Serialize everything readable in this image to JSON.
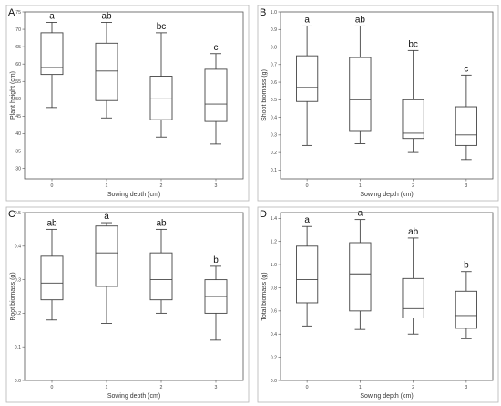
{
  "chart_data": [
    {
      "type": "box",
      "panel_label": "A",
      "xlabel": "Sowing depth (cm)",
      "ylabel": "Plant height (cm)",
      "categories": [
        "0",
        "1",
        "2",
        "3"
      ],
      "ylim": [
        27,
        75
      ],
      "yticks": [
        30,
        35,
        40,
        45,
        50,
        55,
        60,
        65,
        70,
        75
      ],
      "ytick_labels": [
        "30",
        "35",
        "40",
        "45",
        "50",
        "55",
        "60",
        "65",
        "70",
        "75"
      ],
      "boxes": [
        {
          "category": "0",
          "min": 47.5,
          "q1": 57,
          "median": 59,
          "q3": 69,
          "max": 72,
          "letter": "a"
        },
        {
          "category": "1",
          "min": 44.5,
          "q1": 49.5,
          "median": 58,
          "q3": 66,
          "max": 72,
          "letter": "ab"
        },
        {
          "category": "2",
          "min": 39,
          "q1": 44,
          "median": 50,
          "q3": 56.5,
          "max": 69,
          "letter": "bc"
        },
        {
          "category": "3",
          "min": 37,
          "q1": 43.5,
          "median": 48.5,
          "q3": 58.5,
          "max": 63,
          "letter": "c"
        }
      ]
    },
    {
      "type": "box",
      "panel_label": "B",
      "xlabel": "Sowing depth (cm)",
      "ylabel": "Shoot biomass (g)",
      "categories": [
        "0",
        "1",
        "2",
        "3"
      ],
      "ylim": [
        0.05,
        1.0
      ],
      "yticks": [
        0.1,
        0.2,
        0.3,
        0.4,
        0.5,
        0.6,
        0.7,
        0.8,
        0.9,
        1.0
      ],
      "ytick_labels": [
        "0.1",
        "0.2",
        "0.3",
        "0.4",
        "0.5",
        "0.6",
        "0.7",
        "0.8",
        "0.9",
        "1.0"
      ],
      "boxes": [
        {
          "category": "0",
          "min": 0.24,
          "q1": 0.49,
          "median": 0.57,
          "q3": 0.75,
          "max": 0.92,
          "letter": "a"
        },
        {
          "category": "1",
          "min": 0.25,
          "q1": 0.32,
          "median": 0.5,
          "q3": 0.74,
          "max": 0.92,
          "letter": "ab"
        },
        {
          "category": "2",
          "min": 0.2,
          "q1": 0.28,
          "median": 0.31,
          "q3": 0.5,
          "max": 0.78,
          "letter": "bc"
        },
        {
          "category": "3",
          "min": 0.16,
          "q1": 0.24,
          "median": 0.3,
          "q3": 0.46,
          "max": 0.64,
          "letter": "c"
        }
      ]
    },
    {
      "type": "box",
      "panel_label": "C",
      "xlabel": "Sowing depth (cm)",
      "ylabel": "Root biomass (g)",
      "categories": [
        "0",
        "1",
        "2",
        "3"
      ],
      "ylim": [
        0.0,
        0.5
      ],
      "yticks": [
        0.0,
        0.1,
        0.2,
        0.3,
        0.4,
        0.5
      ],
      "ytick_labels": [
        "0.0",
        "0.1",
        "0.2",
        "0.3",
        "0.4",
        "0.5"
      ],
      "boxes": [
        {
          "category": "0",
          "min": 0.18,
          "q1": 0.24,
          "median": 0.29,
          "q3": 0.37,
          "max": 0.45,
          "letter": "ab"
        },
        {
          "category": "1",
          "min": 0.17,
          "q1": 0.28,
          "median": 0.38,
          "q3": 0.46,
          "max": 0.47,
          "letter": "a"
        },
        {
          "category": "2",
          "min": 0.2,
          "q1": 0.24,
          "median": 0.3,
          "q3": 0.38,
          "max": 0.45,
          "letter": "ab"
        },
        {
          "category": "3",
          "min": 0.12,
          "q1": 0.2,
          "median": 0.25,
          "q3": 0.3,
          "max": 0.34,
          "letter": "b"
        }
      ]
    },
    {
      "type": "box",
      "panel_label": "D",
      "xlabel": "Sowing depth (cm)",
      "ylabel": "Total biomass (g)",
      "categories": [
        "0",
        "1",
        "2",
        "3"
      ],
      "ylim": [
        0.0,
        1.45
      ],
      "yticks": [
        0.0,
        0.2,
        0.4,
        0.6,
        0.8,
        1.0,
        1.2,
        1.4
      ],
      "ytick_labels": [
        "0.0",
        "0.2",
        "0.4",
        "0.6",
        "0.8",
        "1.0",
        "1.2",
        "1.4"
      ],
      "boxes": [
        {
          "category": "0",
          "min": 0.47,
          "q1": 0.67,
          "median": 0.87,
          "q3": 1.16,
          "max": 1.33,
          "letter": "a"
        },
        {
          "category": "1",
          "min": 0.44,
          "q1": 0.6,
          "median": 0.92,
          "q3": 1.19,
          "max": 1.39,
          "letter": "a"
        },
        {
          "category": "2",
          "min": 0.4,
          "q1": 0.54,
          "median": 0.62,
          "q3": 0.88,
          "max": 1.23,
          "letter": "ab"
        },
        {
          "category": "3",
          "min": 0.36,
          "q1": 0.45,
          "median": 0.56,
          "q3": 0.77,
          "max": 0.94,
          "letter": "b"
        }
      ]
    }
  ]
}
